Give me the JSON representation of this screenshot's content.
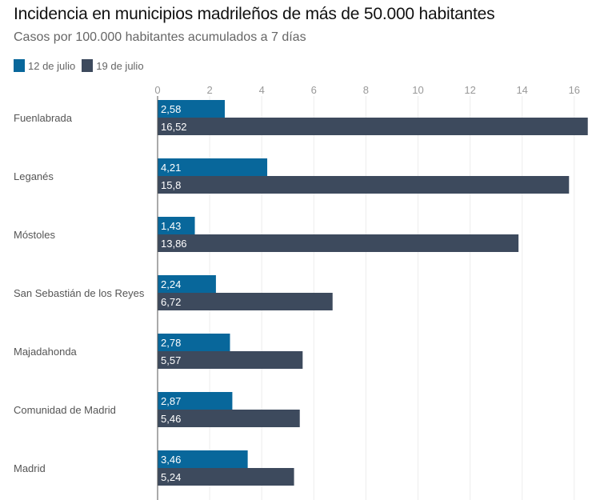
{
  "chart_data": {
    "type": "bar",
    "orientation": "horizontal",
    "title": "Incidencia en municipios madrileños de más de 50.000 habitantes",
    "subtitle": "Casos por 100.000 habitantes acumulados a 7 días",
    "xlabel": "",
    "ylabel": "",
    "xlim": [
      0,
      16.6
    ],
    "xticks": [
      0,
      2,
      4,
      6,
      8,
      10,
      12,
      14,
      16
    ],
    "grid": true,
    "legend_position": "top-left",
    "categories": [
      "Fuenlabrada",
      "Leganés",
      "Móstoles",
      "San Sebastián de los Reyes",
      "Majadahonda",
      "Comunidad de Madrid",
      "Madrid"
    ],
    "series": [
      {
        "name": "12 de julio",
        "color": "#08679b",
        "values": [
          2.58,
          4.21,
          1.43,
          2.24,
          2.78,
          2.87,
          3.46
        ],
        "labels": [
          "2,58",
          "4,21",
          "1,43",
          "2,24",
          "2,78",
          "2,87",
          "3,46"
        ]
      },
      {
        "name": "19 de julio",
        "color": "#3d4a5d",
        "values": [
          16.52,
          15.8,
          13.86,
          6.72,
          5.57,
          5.46,
          5.24
        ],
        "labels": [
          "16,52",
          "15,8",
          "13,86",
          "6,72",
          "5,57",
          "5,46",
          "5,24"
        ]
      }
    ]
  }
}
